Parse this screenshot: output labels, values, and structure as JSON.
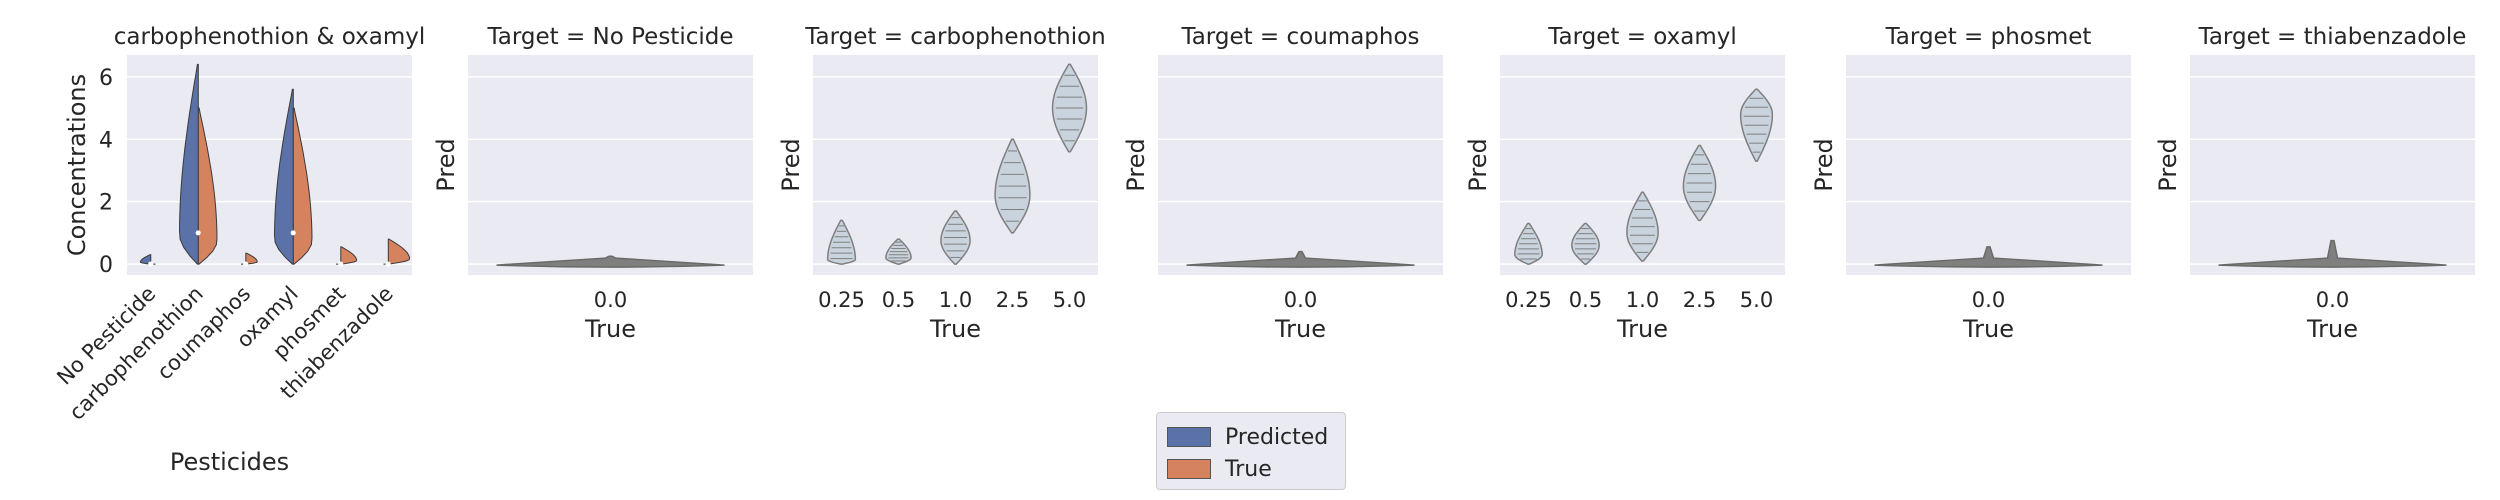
{
  "chart_data": [
    {
      "type": "violin",
      "title": "carbophenothion & oxamyl",
      "xlabel": "Pesticides",
      "ylabel": "Concentrations",
      "categories": [
        "No Pesticide",
        "carbophenothion",
        "coumaphos",
        "oxamyl",
        "phosmet",
        "thiabenzadole"
      ],
      "yticks": [
        0,
        2,
        4,
        6
      ],
      "ylim": [
        -0.35,
        6.7
      ],
      "series": [
        {
          "name": "Predicted",
          "color": "#5a72a8",
          "ranges": [
            [
              0,
              0.3
            ],
            [
              0,
              6.4
            ],
            [
              0,
              0
            ],
            [
              0,
              5.6
            ],
            [
              0,
              0
            ],
            [
              0,
              0
            ]
          ],
          "medians": [
            0,
            1.0,
            0,
            1.0,
            0,
            0
          ]
        },
        {
          "name": "True",
          "color": "#d5825e",
          "ranges": [
            [
              0,
              0
            ],
            [
              0,
              5.0
            ],
            [
              0,
              0.35
            ],
            [
              0,
              5.0
            ],
            [
              0,
              0.55
            ],
            [
              0,
              0.8
            ]
          ],
          "medians": [
            0,
            1.0,
            0,
            1.0,
            0,
            0
          ]
        }
      ]
    },
    {
      "type": "violin",
      "title": "Target = No Pesticide",
      "xlabel": "True",
      "ylabel": "Pred",
      "ylim": [
        -0.35,
        6.7
      ],
      "categories": [
        "0.0"
      ],
      "ranges": [
        [
          0,
          0.25
        ]
      ]
    },
    {
      "type": "violin",
      "title": "Target = carbophenothion",
      "xlabel": "True",
      "ylabel": "Pred",
      "ylim": [
        -0.35,
        6.7
      ],
      "categories": [
        "0.25",
        "0.5",
        "1.0",
        "2.5",
        "5.0"
      ],
      "ranges": [
        [
          0,
          1.4
        ],
        [
          0,
          0.8
        ],
        [
          0,
          1.7
        ],
        [
          1.0,
          4.0
        ],
        [
          3.6,
          6.4
        ]
      ],
      "medians": [
        0.1,
        0.2,
        0.75,
        2.2,
        5.0
      ]
    },
    {
      "type": "violin",
      "title": "Target = coumaphos",
      "xlabel": "True",
      "ylabel": "Pred",
      "ylim": [
        -0.35,
        6.7
      ],
      "categories": [
        "0.0"
      ],
      "ranges": [
        [
          0,
          0.4
        ]
      ]
    },
    {
      "type": "violin",
      "title": "Target = oxamyl",
      "xlabel": "True",
      "ylabel": "Pred",
      "ylim": [
        -0.35,
        6.7
      ],
      "categories": [
        "0.25",
        "0.5",
        "1.0",
        "2.5",
        "5.0"
      ],
      "ranges": [
        [
          0,
          1.3
        ],
        [
          0,
          1.3
        ],
        [
          0.1,
          2.3
        ],
        [
          1.4,
          3.8
        ],
        [
          3.3,
          5.6
        ]
      ],
      "medians": [
        0.3,
        0.6,
        1.0,
        2.5,
        4.8
      ]
    },
    {
      "type": "violin",
      "title": "Target = phosmet",
      "xlabel": "True",
      "ylabel": "Pred",
      "ylim": [
        -0.35,
        6.7
      ],
      "categories": [
        "0.0"
      ],
      "ranges": [
        [
          0,
          0.55
        ]
      ]
    },
    {
      "type": "violin",
      "title": "Target = thiabenzadole",
      "xlabel": "True",
      "ylabel": "Pred",
      "ylim": [
        -0.35,
        6.7
      ],
      "categories": [
        "0.0"
      ],
      "ranges": [
        [
          0,
          0.75
        ]
      ]
    }
  ],
  "legend": {
    "entries": [
      {
        "label": "Predicted",
        "color": "#5a72a8"
      },
      {
        "label": "True",
        "color": "#d5825e"
      }
    ]
  }
}
